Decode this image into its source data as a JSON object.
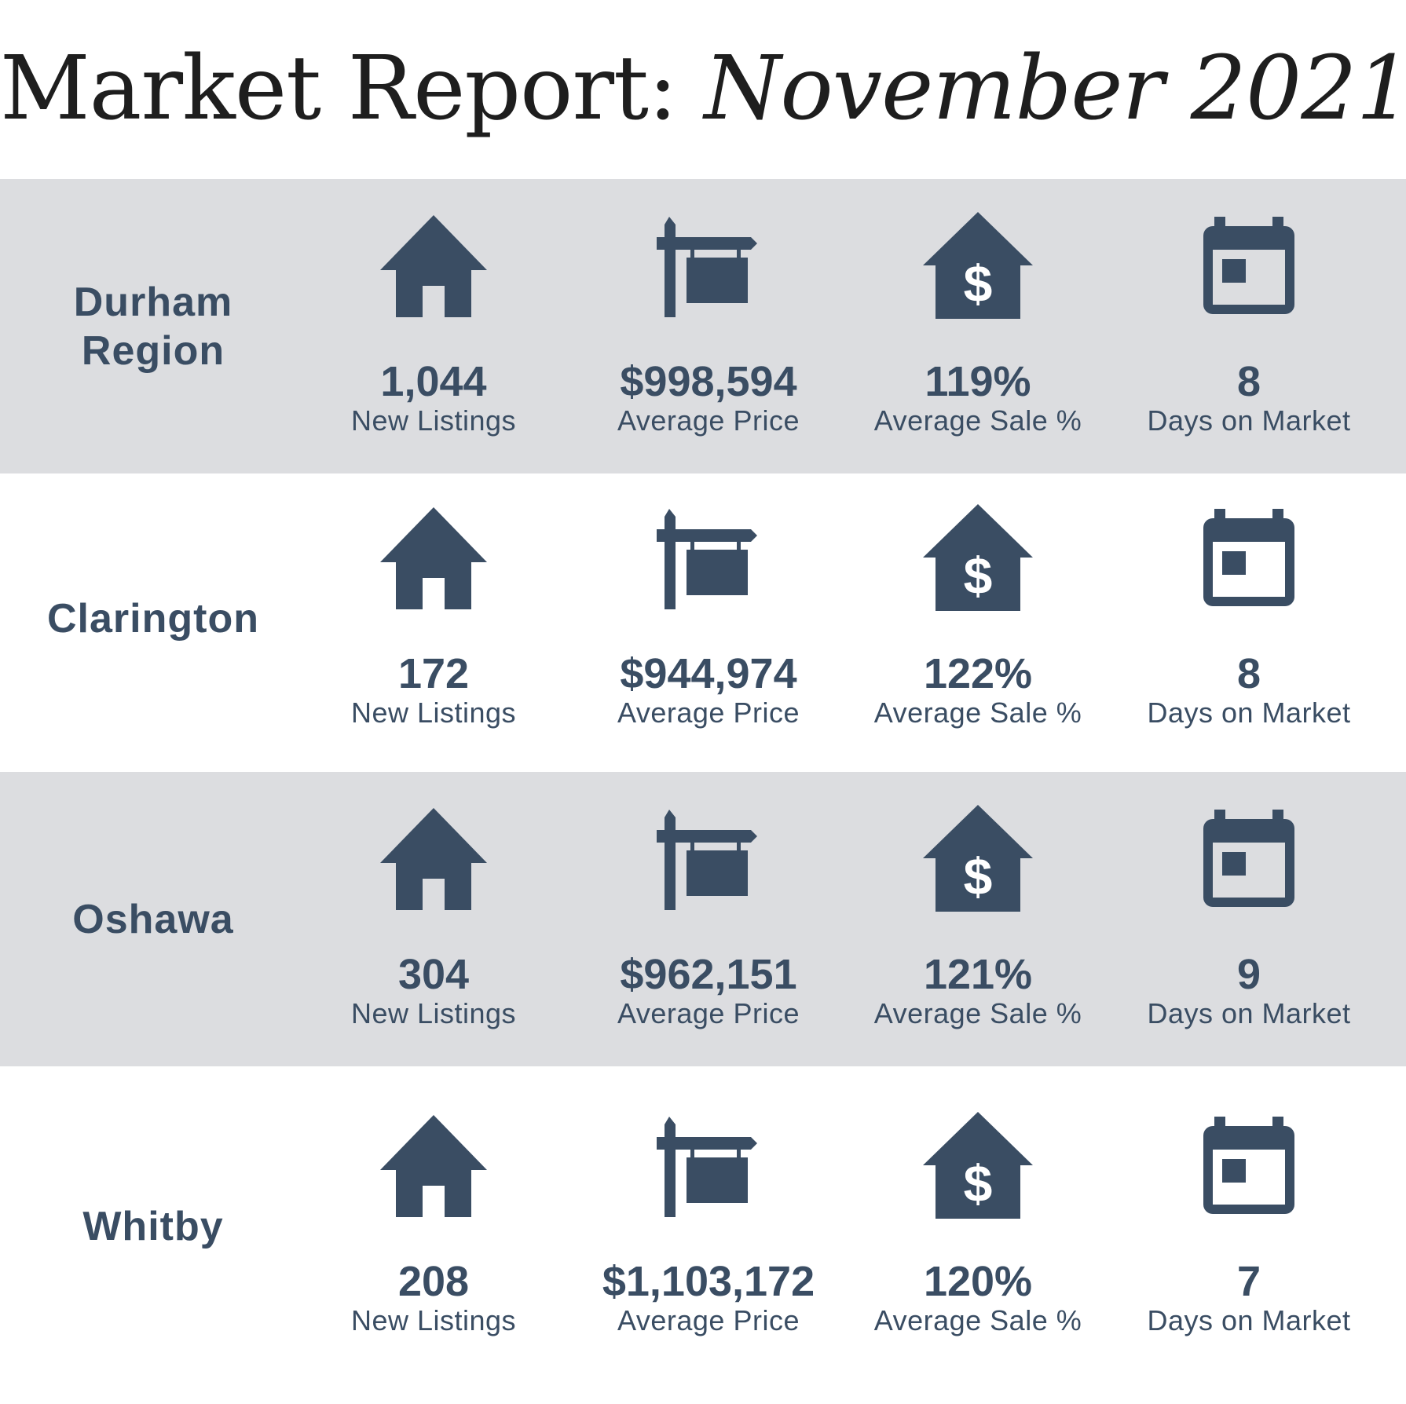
{
  "title": {
    "prefix": "Market Report: ",
    "emphasis": "November 2021"
  },
  "labels": {
    "new_listings": "New Listings",
    "average_price": "Average Price",
    "average_sale": "Average Sale %",
    "days_on_market": "Days on Market"
  },
  "icons": {
    "listings": "house-icon",
    "price": "for-sale-sign-icon",
    "sale": "house-dollar-icon",
    "days": "calendar-icon"
  },
  "colors": {
    "accent": "#3a4d63",
    "shaded_band": "#dcdde0",
    "title": "#1e1e1e"
  },
  "regions": [
    {
      "name": "Durham\nRegion",
      "new_listings": "1,044",
      "average_price": "$998,594",
      "average_sale": "119%",
      "days_on_market": "8"
    },
    {
      "name": "Clarington",
      "new_listings": "172",
      "average_price": "$944,974",
      "average_sale": "122%",
      "days_on_market": "8"
    },
    {
      "name": "Oshawa",
      "new_listings": "304",
      "average_price": "$962,151",
      "average_sale": "121%",
      "days_on_market": "9"
    },
    {
      "name": "Whitby",
      "new_listings": "208",
      "average_price": "$1,103,172",
      "average_sale": "120%",
      "days_on_market": "7"
    }
  ]
}
